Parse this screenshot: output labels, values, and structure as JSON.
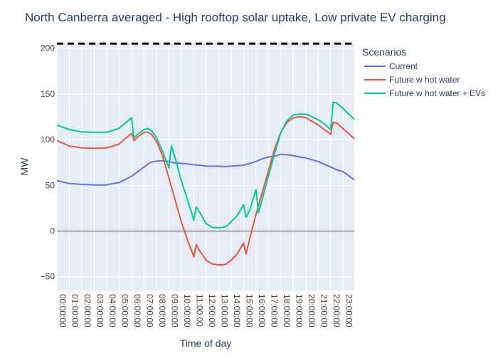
{
  "chart_data": {
    "type": "line",
    "title": "North Canberra averaged - High rooftop solar uptake, Low private EV charging",
    "xlabel": "Time of day",
    "ylabel": "MW",
    "ylim": [
      -65,
      206
    ],
    "yticks": [
      -50,
      0,
      50,
      100,
      150,
      200
    ],
    "xlim": [
      0,
      23.9
    ],
    "xticks": [
      "00:00:00",
      "01:00:00",
      "02:00:00",
      "03:00:00",
      "04:00:00",
      "05:00:00",
      "06:00:00",
      "07:00:00",
      "08:00:00",
      "09:00:00",
      "10:00:00",
      "11:00:00",
      "12:00:00",
      "13:00:00",
      "14:00:00",
      "15:00:00",
      "16:00:00",
      "17:00:00",
      "18:00:00",
      "19:00:00",
      "20:00:00",
      "21:00:00",
      "22:00:00",
      "23:00:00"
    ],
    "legend_title": "Scenarios",
    "legend_position": "right",
    "grid": true,
    "capacity_line": {
      "value": 205,
      "style": "dashed",
      "color": "#000000"
    },
    "zero_line": {
      "value": 0,
      "color": "#444444"
    },
    "colors": {
      "plot_bg": "#e5ecf6",
      "grid": "#ffffff",
      "text": "#2a3f5f",
      "axis_text": "#444444"
    },
    "series": [
      {
        "name": "Current",
        "color": "#636efa",
        "x": [
          0,
          1,
          2,
          3,
          4,
          4.5,
          5,
          5.5,
          6,
          6.5,
          7,
          7.5,
          8,
          8.5,
          9,
          9.5,
          10,
          10.5,
          11,
          11.5,
          12,
          12.5,
          13,
          13.5,
          14,
          14.5,
          15,
          15.5,
          16,
          16.5,
          17,
          17.5,
          18,
          18.5,
          19,
          19.5,
          20,
          20.5,
          21,
          21.5,
          22,
          22.5,
          23,
          23.9
        ],
        "y": [
          55,
          52,
          51,
          50.5,
          50.5,
          52,
          53,
          56.5,
          60,
          65,
          70,
          75,
          76.5,
          77,
          76,
          74.5,
          74,
          73.5,
          72.5,
          72,
          71,
          71,
          71,
          70.5,
          71,
          71.5,
          72,
          74,
          76,
          79,
          81,
          82,
          84,
          83.5,
          82.5,
          81,
          80,
          78,
          76,
          73,
          70,
          67,
          65,
          56
        ]
      },
      {
        "name": "Future w hot water",
        "color": "#ef553b",
        "x": [
          0,
          1,
          2,
          3,
          4,
          4.5,
          5,
          5.5,
          6,
          6.2,
          6.5,
          7,
          7.3,
          7.6,
          8,
          8.5,
          9,
          9.5,
          10,
          10.5,
          11,
          11.2,
          11.5,
          12,
          12.5,
          13,
          13.3,
          13.6,
          14,
          14.5,
          15,
          15.2,
          15.5,
          16,
          16.5,
          17,
          17.5,
          18,
          18.5,
          19,
          19.5,
          20,
          20.5,
          21,
          21.5,
          22,
          22.2,
          22.5,
          23,
          23.9
        ],
        "y": [
          99,
          93,
          91,
          90.5,
          91,
          93,
          95,
          101,
          107,
          99,
          103,
          108,
          108,
          106,
          98,
          82,
          58,
          34,
          10,
          -10,
          -28,
          -15,
          -22,
          -32,
          -36,
          -37,
          -37,
          -36,
          -32,
          -25,
          -13,
          -25,
          -8,
          18,
          42,
          66,
          90,
          108,
          119,
          124,
          125,
          124,
          120,
          116,
          111,
          106,
          119,
          118,
          112,
          101
        ]
      },
      {
        "name": "Future w hot water + EVs",
        "color": "#00cc96",
        "x": [
          0,
          1,
          2,
          3,
          4,
          4.5,
          5,
          5.5,
          6,
          6.2,
          6.5,
          7,
          7.3,
          7.6,
          8,
          8.5,
          9,
          9.2,
          9.5,
          10,
          10.5,
          11,
          11.2,
          11.5,
          12,
          12.5,
          13,
          13.3,
          13.6,
          14,
          14.5,
          15,
          15.2,
          15.5,
          16,
          16.2,
          16.5,
          17,
          17.5,
          18,
          18.5,
          19,
          19.5,
          20,
          20.5,
          21,
          21.5,
          22,
          22.2,
          22.5,
          23,
          23.9
        ],
        "y": [
          116,
          111,
          108.5,
          108,
          108,
          110,
          112.5,
          118,
          124,
          102,
          106,
          111,
          112,
          110,
          102,
          87,
          69,
          93,
          80,
          55,
          34,
          12,
          26,
          20,
          8,
          4,
          3.5,
          4,
          5,
          10,
          17,
          29,
          15,
          23,
          45,
          20,
          35,
          60,
          85,
          108,
          121,
          127,
          128,
          128,
          125,
          122,
          117,
          111,
          141,
          140,
          134,
          122
        ]
      }
    ]
  }
}
